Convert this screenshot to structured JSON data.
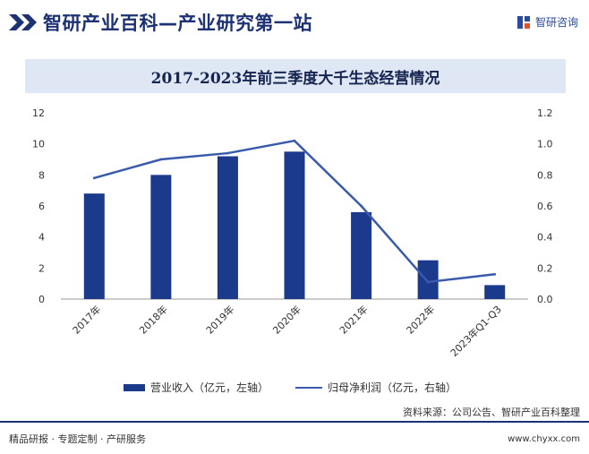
{
  "header": {
    "site_title": "智研产业百科—产业研究第一站",
    "logo_text": "智研咨询",
    "logo_icon": "zhiyan-logo-icon"
  },
  "colors": {
    "brand": "#1d3175",
    "bar": "#1c3a8c",
    "line": "#3a5aab",
    "title_bar_bg": "#dfe6f4"
  },
  "chart_data": {
    "type": "bar",
    "title": "2017-2023年前三季度大千生态经营情况",
    "categories": [
      "2017年",
      "2018年",
      "2019年",
      "2020年",
      "2021年",
      "2022年",
      "2023年Q1-Q3"
    ],
    "series": [
      {
        "name": "营业收入（亿元，左轴）",
        "type": "bar",
        "axis": "left",
        "values": [
          6.8,
          8.0,
          9.2,
          9.5,
          5.6,
          2.5,
          0.9
        ]
      },
      {
        "name": "归母净利润（亿元，右轴）",
        "type": "line",
        "axis": "right",
        "values": [
          0.78,
          0.9,
          0.94,
          1.02,
          0.6,
          0.11,
          0.16
        ]
      }
    ],
    "ylim_left": [
      0,
      12
    ],
    "ylim_right": [
      0,
      1.2
    ],
    "yticks_left": [
      "0",
      "2",
      "4",
      "6",
      "8",
      "10",
      "12"
    ],
    "yticks_right": [
      "0.0",
      "0.2",
      "0.4",
      "0.6",
      "0.8",
      "1.0",
      "1.2"
    ],
    "grid": false,
    "legend_position": "bottom"
  },
  "footer": {
    "source": "资料来源：公司公告、智研产业百科整理",
    "slogan": "精品研报 · 专题定制 · 产研服务",
    "url": "www.chyxx.com"
  }
}
